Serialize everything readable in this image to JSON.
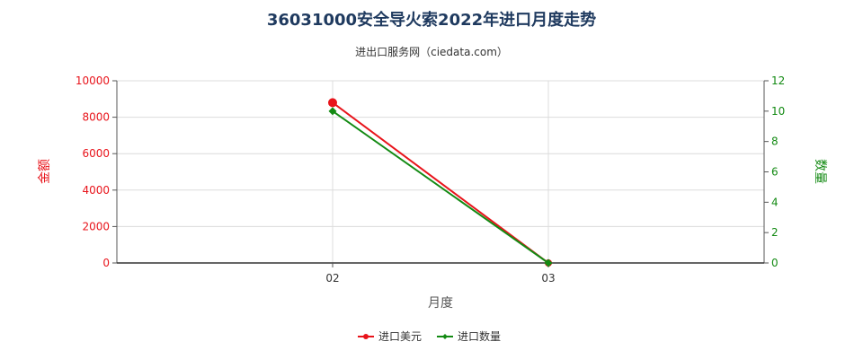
{
  "chart_data": {
    "type": "line",
    "title": "36031000安全导火索2022年进口月度走势",
    "subtitle": "进出口服务网（ciedata.com）",
    "xlabel": "月度",
    "ylabel_left": "金额",
    "ylabel_right": "数量",
    "categories": [
      "02",
      "03"
    ],
    "x_axis_months": [
      "01",
      "02",
      "03",
      "04"
    ],
    "ylim_left": [
      0,
      10000
    ],
    "yticks_left": [
      "0",
      "2000",
      "4000",
      "6000",
      "8000",
      "10000"
    ],
    "ylim_right": [
      0,
      12
    ],
    "yticks_right": [
      "0",
      "2",
      "4",
      "6",
      "8",
      "10",
      "12"
    ],
    "grid": true,
    "legend_position": "bottom",
    "series": [
      {
        "name": "进口美元",
        "axis": "left",
        "color": "#e8141b",
        "x": [
          "02",
          "03"
        ],
        "values": [
          8800,
          0
        ]
      },
      {
        "name": "进口数量",
        "axis": "right",
        "color": "#138a13",
        "x": [
          "02",
          "03"
        ],
        "values": [
          10,
          0
        ]
      }
    ],
    "colors": {
      "left_axis": "#e8141b",
      "right_axis": "#138a13",
      "title": "#1f3a5f"
    }
  }
}
